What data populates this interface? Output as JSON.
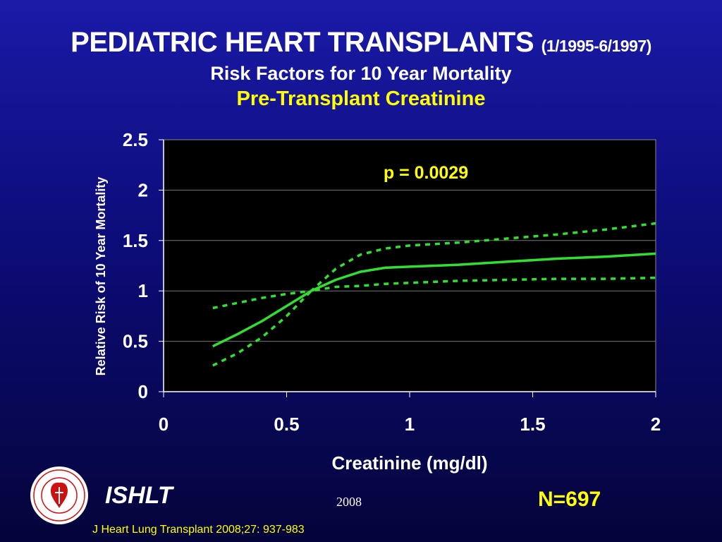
{
  "header": {
    "title_main": "PEDIATRIC HEART TRANSPLANTS",
    "title_date_range": "(1/1995-6/1997)",
    "subtitle_1": "Risk Factors for 10 Year Mortality",
    "subtitle_2": "Pre-Transplant Creatinine"
  },
  "footer": {
    "org": "ISHLT",
    "year": "2008",
    "sample_size": "N=697",
    "citation": "J Heart Lung Transplant 2008;27: 937-983"
  },
  "colors": {
    "background_top": "#1a1aa8",
    "background_bottom": "#04043a",
    "plot_background": "#000000",
    "curve": "#33dd33",
    "highlight_text": "#ffff00"
  },
  "chart_data": {
    "type": "line",
    "title": "",
    "xlabel": "Creatinine (mg/dl)",
    "ylabel": "Relative Risk of 10 Year Mortality",
    "xlim": [
      0,
      2
    ],
    "ylim": [
      0,
      2.5
    ],
    "x_ticks": [
      "0",
      "0.5",
      "1",
      "1.5",
      "2"
    ],
    "y_ticks": [
      "0",
      "0.5",
      "1",
      "1.5",
      "2",
      "2.5"
    ],
    "grid": "horizontal",
    "annotation": "p = 0.0029",
    "series": [
      {
        "style": "solid",
        "x": [
          0.2,
          0.3,
          0.4,
          0.5,
          0.6,
          0.7,
          0.8,
          0.9,
          1.0,
          1.2,
          1.4,
          1.6,
          1.8,
          2.0
        ],
        "y": [
          0.45,
          0.57,
          0.7,
          0.85,
          1.0,
          1.11,
          1.19,
          1.23,
          1.24,
          1.26,
          1.29,
          1.32,
          1.34,
          1.37
        ]
      },
      {
        "style": "dashed",
        "x": [
          0.2,
          0.3,
          0.4,
          0.5,
          0.6,
          0.7,
          0.8,
          0.9,
          1.0,
          1.2,
          1.4,
          1.6,
          1.8,
          2.0
        ],
        "y": [
          0.83,
          0.88,
          0.93,
          0.97,
          1.0,
          1.22,
          1.36,
          1.42,
          1.45,
          1.48,
          1.52,
          1.56,
          1.61,
          1.67
        ]
      },
      {
        "style": "dashed",
        "x": [
          0.2,
          0.3,
          0.4,
          0.5,
          0.6,
          0.7,
          0.8,
          0.9,
          1.0,
          1.2,
          1.4,
          1.6,
          1.8,
          2.0
        ],
        "y": [
          0.26,
          0.38,
          0.54,
          0.75,
          1.0,
          1.04,
          1.05,
          1.07,
          1.08,
          1.1,
          1.11,
          1.12,
          1.12,
          1.13
        ]
      }
    ]
  }
}
